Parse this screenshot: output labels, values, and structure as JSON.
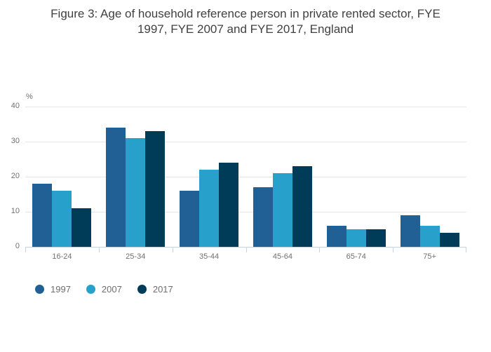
{
  "figure": {
    "title": "Figure 3: Age of household reference person in private rented sector, FYE 1997, FYE 2007 and FYE 2017, England",
    "title_lines": [
      "Figure 3: Age of household reference person in private rented sector, FYE",
      "1997, FYE 2007 and FYE 2017, England"
    ]
  },
  "chart_data": {
    "type": "bar",
    "title": "Figure 3: Age of household reference person in private rented sector, FYE 1997, FYE 2007 and FYE 2017, England",
    "unit_label": "%",
    "xlabel": "",
    "ylabel": "%",
    "categories": [
      "16-24",
      "25-34",
      "35-44",
      "45-64",
      "65-74",
      "75+"
    ],
    "series": [
      {
        "name": "1997",
        "color": "#206095",
        "values": [
          18,
          34,
          16,
          17,
          6,
          9
        ]
      },
      {
        "name": "2007",
        "color": "#27a0cc",
        "values": [
          16,
          31,
          22,
          21,
          5,
          6
        ]
      },
      {
        "name": "2017",
        "color": "#003c57",
        "values": [
          11,
          33,
          24,
          23,
          5,
          4
        ]
      }
    ],
    "ylim": [
      0,
      40
    ],
    "yticks": [
      0,
      10,
      20,
      30,
      40
    ],
    "grid": true,
    "legend_position": "bottom-left",
    "style": {
      "gridline_color": "#e6e6e6",
      "axis_color": "#c6d3e0",
      "title_color": "#414042",
      "tick_label_color": "#707070",
      "legend_label_color": "#6e6e6e"
    }
  }
}
